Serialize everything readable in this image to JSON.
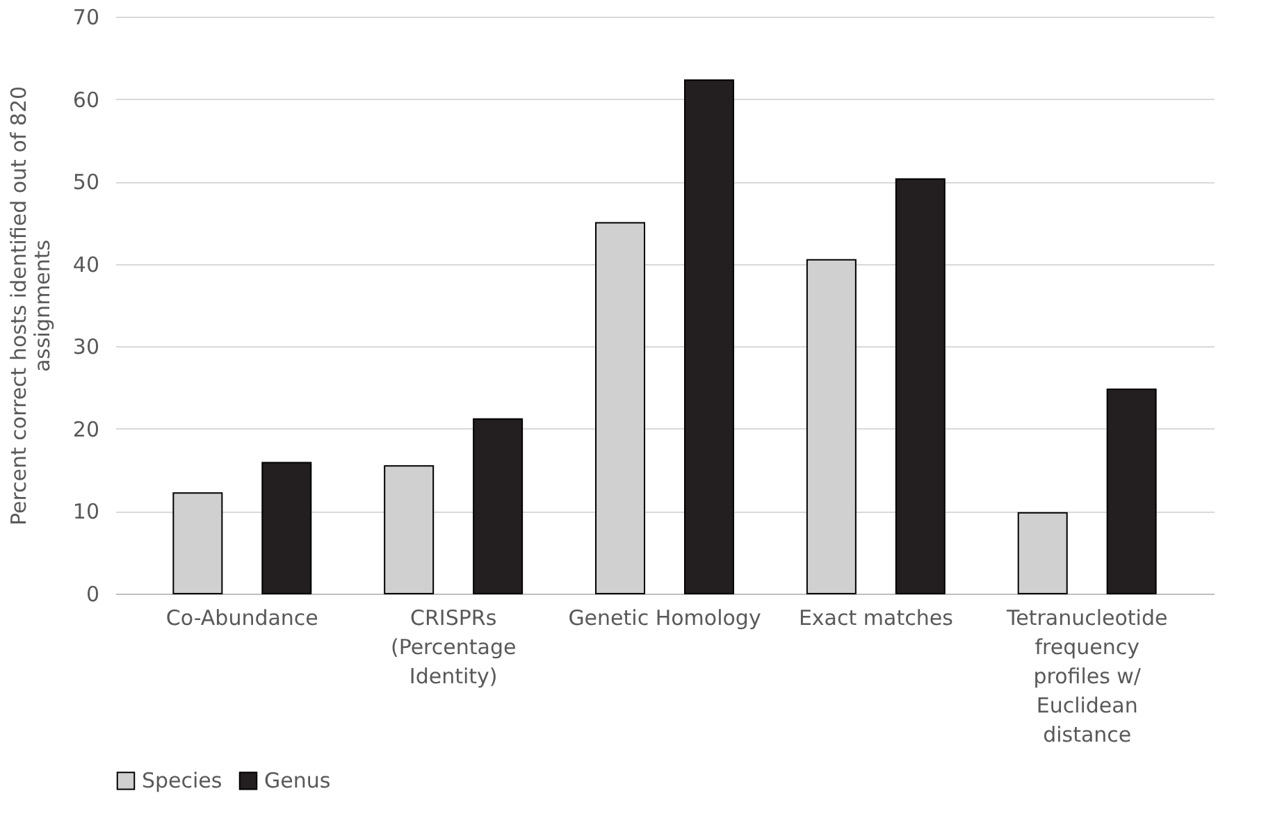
{
  "chart_data": {
    "type": "bar",
    "ylabel": "Percent correct hosts identified out of 820 assignments",
    "categories": [
      "Co-Abundance",
      "CRISPRs (Percentage Identity)",
      "Genetic Homology",
      "Exact matches",
      "Tetranucleotide frequency profiles w/ Euclidean distance"
    ],
    "series": [
      {
        "name": "Species",
        "color": "#d0d0d0",
        "values": [
          12.2,
          15.5,
          45.0,
          40.5,
          9.8
        ]
      },
      {
        "name": "Genus",
        "color": "#231f20",
        "values": [
          15.9,
          21.2,
          62.3,
          50.3,
          24.8
        ]
      }
    ],
    "ylim": [
      0,
      70
    ],
    "yticks": [
      0,
      10,
      20,
      30,
      40,
      50,
      60,
      70
    ],
    "grid": "y",
    "legend": "bottom"
  }
}
